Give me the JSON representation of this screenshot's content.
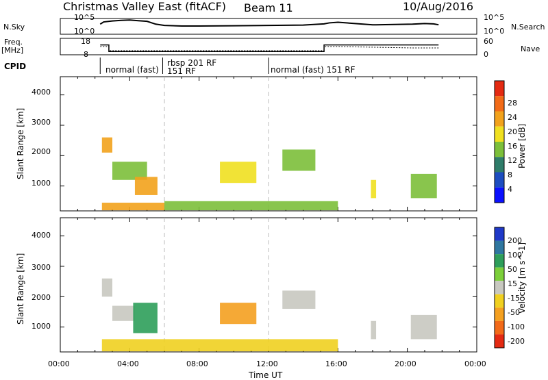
{
  "header": {
    "title": "Christmas Valley East (fitACF)",
    "beam": "Beam 11",
    "date": "10/Aug/2016"
  },
  "sky_panel": {
    "left_label": "N.Sky",
    "right_label": "N.Search",
    "left_ticks": [
      "10^5",
      "10^0"
    ],
    "right_ticks": [
      "10^5",
      "10^0"
    ]
  },
  "freq_panel": {
    "left_label_line1": "Freq.",
    "left_label_line2": "[MHz]",
    "left_ticks": [
      "18",
      "8"
    ],
    "right_ticks": [
      "60",
      "0"
    ],
    "right_label": "Nave"
  },
  "cpid": {
    "label": "CPID",
    "entries": [
      "normal (fast)",
      "rbsp 201 RF",
      "151 RF",
      "normal (fast) 151 RF"
    ]
  },
  "axes": {
    "ylabel": "Slant Range [km]",
    "xlabel": "Time UT",
    "x_ticks": [
      "00:00",
      "04:00",
      "08:00",
      "12:00",
      "16:00",
      "20:00",
      "00:00"
    ],
    "y_ticks": [
      "1000",
      "2000",
      "3000",
      "4000"
    ]
  },
  "colorbars": {
    "power": {
      "label": "Power [dB]",
      "ticks": [
        "4",
        "8",
        "12",
        "16",
        "20",
        "24",
        "28"
      ],
      "colors": [
        "#0a10ff",
        "#1d4dc0",
        "#2f7d6a",
        "#7cbf3a",
        "#f0e020",
        "#f2a21c",
        "#f26b18",
        "#e42a12"
      ]
    },
    "velocity": {
      "label": "Velocity [m s^-1]",
      "ticks": [
        "200",
        "100",
        "50",
        "15",
        "-15",
        "-50",
        "-100",
        "-200"
      ],
      "colors": [
        "#1f39c8",
        "#2f77a0",
        "#2e9e5a",
        "#7ccf3a",
        "#c8c8c0",
        "#f0d020",
        "#f4a020",
        "#f26a18",
        "#e42a12"
      ]
    }
  },
  "chart_data": [
    {
      "type": "line",
      "title": "N.Sky / N.Search",
      "x_unit": "hours UT",
      "xlim": [
        0,
        24
      ],
      "series": [
        {
          "name": "N.Sky",
          "x": [
            2.3,
            2.5,
            3,
            3.5,
            4,
            4.5,
            5,
            5.5,
            6,
            7,
            8,
            10,
            12,
            14,
            15.2,
            15.5,
            16,
            18,
            18.2,
            20.3,
            21,
            21.5,
            21.8
          ],
          "y": [
            3.2,
            3.9,
            4.2,
            4.4,
            4.5,
            4.3,
            4.1,
            3.2,
            2.8,
            2.6,
            2.6,
            2.7,
            2.8,
            2.9,
            3.3,
            3.6,
            3.8,
            3.0,
            3.0,
            3.2,
            3.4,
            3.3,
            3.0
          ]
        }
      ]
    },
    {
      "type": "line",
      "title": "Freq / Nave",
      "x_unit": "hours UT",
      "xlim": [
        0,
        24
      ],
      "series": [
        {
          "name": "Freq",
          "x": [
            2.3,
            2.8,
            2.8,
            15.2,
            15.2,
            16,
            18,
            18.2,
            20.3,
            21.8
          ],
          "y": [
            14,
            14,
            10,
            10,
            14,
            14,
            14,
            14,
            14,
            14
          ]
        },
        {
          "name": "Nave",
          "x": [
            2.3,
            2.8,
            2.8,
            15.2,
            15.2,
            16,
            20.3,
            21.8
          ],
          "y": [
            30,
            30,
            15,
            15,
            30,
            30,
            25,
            25
          ]
        }
      ]
    },
    {
      "type": "heatmap",
      "title": "Power [dB]",
      "xlabel": "Time UT",
      "ylabel": "Slant Range [km]",
      "xlim": [
        0,
        24
      ],
      "ylim": [
        180,
        4600
      ],
      "regions": [
        {
          "x": [
            2.4,
            3.0
          ],
          "y": [
            2100,
            2600
          ],
          "value": 22
        },
        {
          "x": [
            3.0,
            5.0
          ],
          "y": [
            1200,
            1800
          ],
          "value": 14
        },
        {
          "x": [
            4.3,
            5.6
          ],
          "y": [
            700,
            1300
          ],
          "value": 20
        },
        {
          "x": [
            9.2,
            11.3
          ],
          "y": [
            1100,
            1800
          ],
          "value": 16
        },
        {
          "x": [
            12.8,
            14.7
          ],
          "y": [
            1500,
            2200
          ],
          "value": 14
        },
        {
          "x": [
            2.4,
            6.0
          ],
          "y": [
            200,
            450
          ],
          "value": 20
        },
        {
          "x": [
            6.0,
            16.0
          ],
          "y": [
            200,
            500
          ],
          "value": 12
        },
        {
          "x": [
            17.9,
            18.2
          ],
          "y": [
            600,
            1200
          ],
          "value": 16
        },
        {
          "x": [
            20.2,
            21.7
          ],
          "y": [
            600,
            1400
          ],
          "value": 14
        }
      ]
    },
    {
      "type": "heatmap",
      "title": "Velocity [m s^-1]",
      "xlabel": "Time UT",
      "ylabel": "Slant Range [km]",
      "xlim": [
        0,
        24
      ],
      "ylim": [
        180,
        4600
      ],
      "regions": [
        {
          "x": [
            2.4,
            3.0
          ],
          "y": [
            2000,
            2600
          ],
          "value": 0
        },
        {
          "x": [
            3.0,
            4.3
          ],
          "y": [
            1200,
            1700
          ],
          "value": 0
        },
        {
          "x": [
            4.2,
            5.6
          ],
          "y": [
            800,
            1800
          ],
          "value": 80
        },
        {
          "x": [
            9.2,
            11.3
          ],
          "y": [
            1100,
            1800
          ],
          "value": -90
        },
        {
          "x": [
            12.8,
            14.7
          ],
          "y": [
            1600,
            2200
          ],
          "value": 0
        },
        {
          "x": [
            2.4,
            16.0
          ],
          "y": [
            200,
            600
          ],
          "value": -40
        },
        {
          "x": [
            17.9,
            18.2
          ],
          "y": [
            600,
            1200
          ],
          "value": 0
        },
        {
          "x": [
            20.2,
            21.7
          ],
          "y": [
            600,
            1400
          ],
          "value": 0
        }
      ]
    }
  ]
}
